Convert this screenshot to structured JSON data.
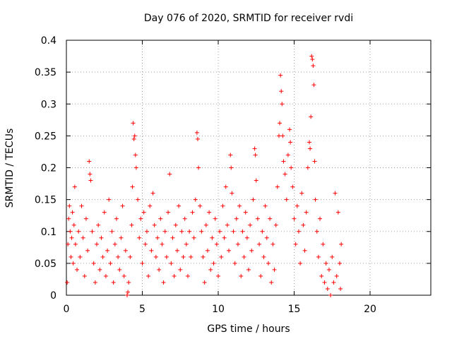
{
  "chart_data": {
    "type": "scatter",
    "title": "Day 076 of 2020, SRMTID for receiver rvdi",
    "xlabel": "GPS time / hours",
    "ylabel": "SRMTID / TECUs",
    "xlim": [
      0,
      24
    ],
    "ylim": [
      0,
      0.4
    ],
    "x_ticks": [
      "0",
      "5",
      "10",
      "15",
      "20"
    ],
    "y_ticks": [
      "0",
      "0.05",
      "0.1",
      "0.15",
      "0.2",
      "0.25",
      "0.3",
      "0.35",
      "0.4"
    ],
    "grid": true,
    "marker": "+",
    "color": "#ff0000",
    "series": [
      {
        "points": [
          [
            0.05,
            0.02
          ],
          [
            0.1,
            0.08
          ],
          [
            0.15,
            0.12
          ],
          [
            0.2,
            0.14
          ],
          [
            0.25,
            0.1
          ],
          [
            0.3,
            0.06
          ],
          [
            0.35,
            0.09
          ],
          [
            0.4,
            0.13
          ],
          [
            0.45,
            0.05
          ],
          [
            0.5,
            0.11
          ],
          [
            0.55,
            0.17
          ],
          [
            0.6,
            0.08
          ],
          [
            0.7,
            0.04
          ],
          [
            0.8,
            0.1
          ],
          [
            0.9,
            0.06
          ],
          [
            1.0,
            0.14
          ],
          [
            1.1,
            0.09
          ],
          [
            1.2,
            0.03
          ],
          [
            1.3,
            0.12
          ],
          [
            1.4,
            0.07
          ],
          [
            1.5,
            0.21
          ],
          [
            1.55,
            0.19
          ],
          [
            1.6,
            0.18
          ],
          [
            1.7,
            0.1
          ],
          [
            1.8,
            0.05
          ],
          [
            1.9,
            0.02
          ],
          [
            2.0,
            0.08
          ],
          [
            2.1,
            0.11
          ],
          [
            2.2,
            0.04
          ],
          [
            2.3,
            0.09
          ],
          [
            2.4,
            0.06
          ],
          [
            2.5,
            0.13
          ],
          [
            2.6,
            0.03
          ],
          [
            2.7,
            0.07
          ],
          [
            2.8,
            0.15
          ],
          [
            2.9,
            0.05
          ],
          [
            3.0,
            0.1
          ],
          [
            3.1,
            0.02
          ],
          [
            3.2,
            0.08
          ],
          [
            3.3,
            0.12
          ],
          [
            3.4,
            0.06
          ],
          [
            3.5,
            0.04
          ],
          [
            3.6,
            0.09
          ],
          [
            3.7,
            0.14
          ],
          [
            3.8,
            0.03
          ],
          [
            3.9,
            0.07
          ],
          [
            4.0,
            0.0
          ],
          [
            4.05,
            0.005
          ],
          [
            4.1,
            0.02
          ],
          [
            4.2,
            0.06
          ],
          [
            4.3,
            0.11
          ],
          [
            4.35,
            0.17
          ],
          [
            4.4,
            0.27
          ],
          [
            4.45,
            0.245
          ],
          [
            4.5,
            0.25
          ],
          [
            4.55,
            0.22
          ],
          [
            4.6,
            0.2
          ],
          [
            4.7,
            0.15
          ],
          [
            4.8,
            0.09
          ],
          [
            4.9,
            0.12
          ],
          [
            5.0,
            0.05
          ],
          [
            5.1,
            0.13
          ],
          [
            5.2,
            0.08
          ],
          [
            5.3,
            0.1
          ],
          [
            5.4,
            0.03
          ],
          [
            5.5,
            0.14
          ],
          [
            5.6,
            0.07
          ],
          [
            5.7,
            0.16
          ],
          [
            5.8,
            0.11
          ],
          [
            5.9,
            0.06
          ],
          [
            6.0,
            0.09
          ],
          [
            6.1,
            0.04
          ],
          [
            6.2,
            0.12
          ],
          [
            6.3,
            0.08
          ],
          [
            6.4,
            0.02
          ],
          [
            6.5,
            0.1
          ],
          [
            6.6,
            0.06
          ],
          [
            6.7,
            0.13
          ],
          [
            6.8,
            0.19
          ],
          [
            6.9,
            0.05
          ],
          [
            7.0,
            0.09
          ],
          [
            7.1,
            0.03
          ],
          [
            7.2,
            0.11
          ],
          [
            7.3,
            0.07
          ],
          [
            7.4,
            0.14
          ],
          [
            7.5,
            0.04
          ],
          [
            7.6,
            0.1
          ],
          [
            7.7,
            0.06
          ],
          [
            7.8,
            0.12
          ],
          [
            7.9,
            0.08
          ],
          [
            8.0,
            0.03
          ],
          [
            8.1,
            0.1
          ],
          [
            8.2,
            0.06
          ],
          [
            8.3,
            0.13
          ],
          [
            8.4,
            0.09
          ],
          [
            8.5,
            0.15
          ],
          [
            8.6,
            0.255
          ],
          [
            8.65,
            0.245
          ],
          [
            8.7,
            0.2
          ],
          [
            8.8,
            0.14
          ],
          [
            8.9,
            0.1
          ],
          [
            9.0,
            0.06
          ],
          [
            9.1,
            0.02
          ],
          [
            9.2,
            0.11
          ],
          [
            9.3,
            0.07
          ],
          [
            9.4,
            0.13
          ],
          [
            9.5,
            0.04
          ],
          [
            9.6,
            0.09
          ],
          [
            9.7,
            0.05
          ],
          [
            9.8,
            0.12
          ],
          [
            9.9,
            0.08
          ],
          [
            10.0,
            0.03
          ],
          [
            10.1,
            0.1
          ],
          [
            10.2,
            0.06
          ],
          [
            10.3,
            0.14
          ],
          [
            10.4,
            0.09
          ],
          [
            10.5,
            0.17
          ],
          [
            10.6,
            0.11
          ],
          [
            10.7,
            0.07
          ],
          [
            10.8,
            0.22
          ],
          [
            10.85,
            0.2
          ],
          [
            10.9,
            0.16
          ],
          [
            11.0,
            0.1
          ],
          [
            11.1,
            0.05
          ],
          [
            11.2,
            0.12
          ],
          [
            11.3,
            0.08
          ],
          [
            11.4,
            0.14
          ],
          [
            11.5,
            0.03
          ],
          [
            11.6,
            0.1
          ],
          [
            11.7,
            0.06
          ],
          [
            11.8,
            0.13
          ],
          [
            11.9,
            0.09
          ],
          [
            12.0,
            0.04
          ],
          [
            12.1,
            0.11
          ],
          [
            12.2,
            0.07
          ],
          [
            12.3,
            0.15
          ],
          [
            12.4,
            0.23
          ],
          [
            12.45,
            0.22
          ],
          [
            12.5,
            0.18
          ],
          [
            12.6,
            0.12
          ],
          [
            12.7,
            0.08
          ],
          [
            12.8,
            0.03
          ],
          [
            12.9,
            0.1
          ],
          [
            13.0,
            0.06
          ],
          [
            13.1,
            0.14
          ],
          [
            13.2,
            0.09
          ],
          [
            13.3,
            0.05
          ],
          [
            13.4,
            0.12
          ],
          [
            13.5,
            0.02
          ],
          [
            13.6,
            0.08
          ],
          [
            13.7,
            0.04
          ],
          [
            13.8,
            0.11
          ],
          [
            13.9,
            0.17
          ],
          [
            14.0,
            0.25
          ],
          [
            14.05,
            0.27
          ],
          [
            14.1,
            0.345
          ],
          [
            14.15,
            0.32
          ],
          [
            14.2,
            0.3
          ],
          [
            14.25,
            0.25
          ],
          [
            14.3,
            0.21
          ],
          [
            14.4,
            0.19
          ],
          [
            14.5,
            0.15
          ],
          [
            14.6,
            0.22
          ],
          [
            14.7,
            0.26
          ],
          [
            14.75,
            0.24
          ],
          [
            14.8,
            0.2
          ],
          [
            14.9,
            0.17
          ],
          [
            15.0,
            0.12
          ],
          [
            15.1,
            0.08
          ],
          [
            15.2,
            0.14
          ],
          [
            15.3,
            0.1
          ],
          [
            15.4,
            0.05
          ],
          [
            15.5,
            0.16
          ],
          [
            15.6,
            0.11
          ],
          [
            15.7,
            0.07
          ],
          [
            15.8,
            0.13
          ],
          [
            15.9,
            0.2
          ],
          [
            16.0,
            0.24
          ],
          [
            16.05,
            0.23
          ],
          [
            16.1,
            0.28
          ],
          [
            16.15,
            0.375
          ],
          [
            16.2,
            0.37
          ],
          [
            16.25,
            0.36
          ],
          [
            16.3,
            0.33
          ],
          [
            16.35,
            0.21
          ],
          [
            16.4,
            0.15
          ],
          [
            16.5,
            0.1
          ],
          [
            16.6,
            0.06
          ],
          [
            16.7,
            0.12
          ],
          [
            16.8,
            0.03
          ],
          [
            16.9,
            0.08
          ],
          [
            17.0,
            0.02
          ],
          [
            17.1,
            0.05
          ],
          [
            17.2,
            0.01
          ],
          [
            17.3,
            0.04
          ],
          [
            17.4,
            0.0
          ],
          [
            17.5,
            0.06
          ],
          [
            17.6,
            0.02
          ],
          [
            17.7,
            0.16
          ],
          [
            17.8,
            0.03
          ],
          [
            17.9,
            0.13
          ],
          [
            18.0,
            0.05
          ],
          [
            18.05,
            0.01
          ],
          [
            18.1,
            0.08
          ]
        ]
      }
    ]
  }
}
